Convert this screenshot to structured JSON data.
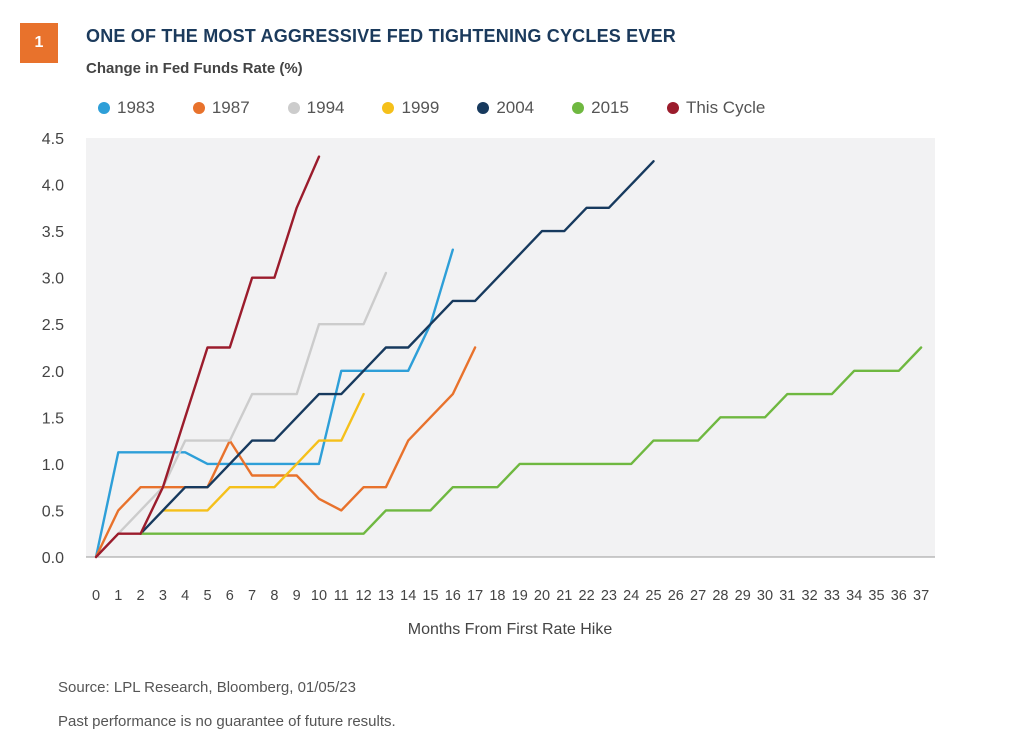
{
  "header": {
    "badge": "1",
    "title": "ONE OF THE MOST AGGRESSIVE FED TIGHTENING CYCLES EVER",
    "subtitle": "Change in Fed Funds Rate (%)"
  },
  "footer": {
    "source": "Source: LPL Research, Bloomberg, 01/05/23",
    "disclaimer": "Past performance is no guarantee of future results."
  },
  "chart_data": {
    "type": "line",
    "xlabel": "Months From First Rate Hike",
    "ylabel": "",
    "xlim": [
      0,
      37
    ],
    "ylim": [
      0,
      4.5
    ],
    "xticks": [
      0,
      1,
      2,
      3,
      4,
      5,
      6,
      7,
      8,
      9,
      10,
      11,
      12,
      13,
      14,
      15,
      16,
      17,
      18,
      19,
      20,
      21,
      22,
      23,
      24,
      25,
      26,
      27,
      28,
      29,
      30,
      31,
      32,
      33,
      34,
      35,
      36,
      37
    ],
    "yticks": [
      "0.0",
      "0.5",
      "1.0",
      "1.5",
      "2.0",
      "2.5",
      "3.0",
      "3.5",
      "4.0",
      "4.5"
    ],
    "legend_position": "top",
    "grid": false,
    "series": [
      {
        "name": "1983",
        "color": "#2e9fd8",
        "x": [
          0,
          1,
          2,
          3,
          4,
          5,
          6,
          7,
          8,
          9,
          10,
          11,
          12,
          13,
          14,
          15,
          16
        ],
        "values": [
          0,
          1.125,
          1.125,
          1.125,
          1.125,
          1.0,
          1.0,
          1.0,
          1.0,
          1.0,
          1.0,
          2.0,
          2.0,
          2.0,
          2.0,
          2.5,
          3.3
        ]
      },
      {
        "name": "1987",
        "color": "#e8722c",
        "x": [
          0,
          1,
          2,
          3,
          4,
          5,
          6,
          7,
          8,
          9,
          10,
          11,
          12,
          13,
          14,
          15,
          16,
          17
        ],
        "values": [
          0,
          0.5,
          0.75,
          0.75,
          0.75,
          0.75,
          1.25,
          0.875,
          0.875,
          0.875,
          0.625,
          0.5,
          0.75,
          0.75,
          1.25,
          1.5,
          1.75,
          2.25
        ]
      },
      {
        "name": "1994",
        "color": "#cccccc",
        "x": [
          0,
          1,
          2,
          3,
          4,
          5,
          6,
          7,
          8,
          9,
          10,
          11,
          12,
          13
        ],
        "values": [
          0,
          0.25,
          0.5,
          0.75,
          1.25,
          1.25,
          1.25,
          1.75,
          1.75,
          1.75,
          2.5,
          2.5,
          2.5,
          3.05
        ]
      },
      {
        "name": "1999",
        "color": "#f5c01a",
        "x": [
          3,
          4,
          5,
          6,
          7,
          8,
          9,
          10,
          11,
          12
        ],
        "values": [
          0.5,
          0.5,
          0.5,
          0.75,
          0.75,
          0.75,
          1.0,
          1.25,
          1.25,
          1.75
        ]
      },
      {
        "name": "2004",
        "color": "#173a5e",
        "x": [
          2,
          3,
          4,
          5,
          6,
          7,
          8,
          9,
          10,
          11,
          12,
          13,
          14,
          15,
          16,
          17,
          18,
          19,
          20,
          21,
          22,
          23,
          24,
          25
        ],
        "values": [
          0.25,
          0.5,
          0.75,
          0.75,
          1.0,
          1.25,
          1.25,
          1.5,
          1.75,
          1.75,
          2.0,
          2.25,
          2.25,
          2.5,
          2.75,
          2.75,
          3.0,
          3.25,
          3.5,
          3.5,
          3.75,
          3.75,
          4.0,
          4.25
        ]
      },
      {
        "name": "2015",
        "color": "#6fb840",
        "x": [
          2,
          3,
          4,
          5,
          6,
          7,
          8,
          9,
          10,
          11,
          12,
          13,
          14,
          15,
          16,
          17,
          18,
          19,
          20,
          21,
          22,
          23,
          24,
          25,
          26,
          27,
          28,
          29,
          30,
          31,
          32,
          33,
          34,
          35,
          36,
          37
        ],
        "values": [
          0.25,
          0.25,
          0.25,
          0.25,
          0.25,
          0.25,
          0.25,
          0.25,
          0.25,
          0.25,
          0.25,
          0.5,
          0.5,
          0.5,
          0.75,
          0.75,
          0.75,
          1.0,
          1.0,
          1.0,
          1.0,
          1.0,
          1.0,
          1.25,
          1.25,
          1.25,
          1.5,
          1.5,
          1.5,
          1.75,
          1.75,
          1.75,
          2.0,
          2.0,
          2.0,
          2.25
        ]
      },
      {
        "name": "This Cycle",
        "color": "#9b1c2c",
        "x": [
          0,
          1,
          2,
          3,
          4,
          5,
          6,
          7,
          8,
          9,
          10
        ],
        "values": [
          0,
          0.25,
          0.25,
          0.75,
          1.5,
          2.25,
          2.25,
          3.0,
          3.0,
          3.75,
          4.3
        ]
      }
    ]
  }
}
